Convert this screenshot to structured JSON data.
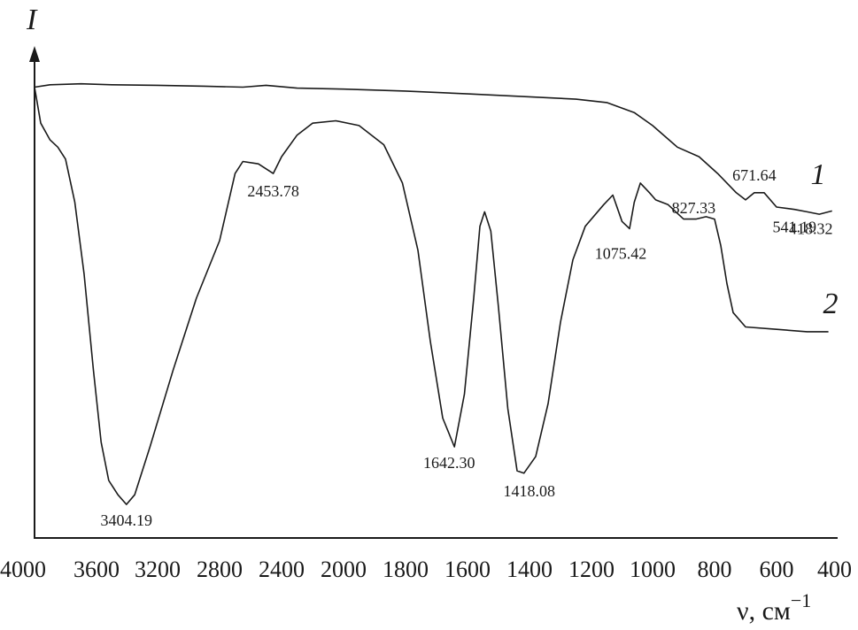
{
  "chart_data": {
    "type": "line",
    "title": "",
    "xlabel": "ν, см",
    "xlabel_sup": "−1",
    "ylabel": "I",
    "xlim": [
      4000,
      400
    ],
    "ylim": [
      0,
      1
    ],
    "grid": false,
    "x_ticks": [
      {
        "value": 4000,
        "label": "4000"
      },
      {
        "value": 3600,
        "label": "3600"
      },
      {
        "value": 3200,
        "label": "3200"
      },
      {
        "value": 2800,
        "label": "2800"
      },
      {
        "value": 2400,
        "label": "2400"
      },
      {
        "value": 2000,
        "label": "2000"
      },
      {
        "value": 1800,
        "label": "1800"
      },
      {
        "value": 1600,
        "label": "1600"
      },
      {
        "value": 1400,
        "label": "1400"
      },
      {
        "value": 1200,
        "label": "1200"
      },
      {
        "value": 1000,
        "label": "1000"
      },
      {
        "value": 800,
        "label": "800"
      },
      {
        "value": 600,
        "label": "600"
      },
      {
        "value": 400,
        "label": "400"
      }
    ],
    "series": [
      {
        "name": "1",
        "points": [
          [
            4000,
            0.94
          ],
          [
            3900,
            0.945
          ],
          [
            3700,
            0.947
          ],
          [
            3500,
            0.945
          ],
          [
            3200,
            0.944
          ],
          [
            2900,
            0.942
          ],
          [
            2650,
            0.94
          ],
          [
            2500,
            0.944
          ],
          [
            2300,
            0.938
          ],
          [
            2000,
            0.936
          ],
          [
            1800,
            0.932
          ],
          [
            1600,
            0.926
          ],
          [
            1400,
            0.92
          ],
          [
            1250,
            0.915
          ],
          [
            1150,
            0.908
          ],
          [
            1060,
            0.887
          ],
          [
            1000,
            0.86
          ],
          [
            920,
            0.815
          ],
          [
            850,
            0.795
          ],
          [
            790,
            0.76
          ],
          [
            730,
            0.72
          ],
          [
            700,
            0.705
          ],
          [
            671.64,
            0.72
          ],
          [
            640,
            0.72
          ],
          [
            600,
            0.69
          ],
          [
            541.19,
            0.685
          ],
          [
            500,
            0.68
          ],
          [
            460,
            0.675
          ],
          [
            418.32,
            0.682
          ]
        ],
        "peak_labels": [
          {
            "x": 671.64,
            "label": "671.64"
          },
          {
            "x": 541.19,
            "label": "541.19"
          },
          {
            "x": 418.32,
            "label": "418.32"
          }
        ]
      },
      {
        "name": "2",
        "points": [
          [
            4000,
            0.94
          ],
          [
            3960,
            0.865
          ],
          [
            3900,
            0.83
          ],
          [
            3850,
            0.815
          ],
          [
            3800,
            0.79
          ],
          [
            3740,
            0.7
          ],
          [
            3680,
            0.55
          ],
          [
            3620,
            0.35
          ],
          [
            3570,
            0.2
          ],
          [
            3520,
            0.12
          ],
          [
            3460,
            0.09
          ],
          [
            3404.19,
            0.07
          ],
          [
            3350,
            0.09
          ],
          [
            3250,
            0.19
          ],
          [
            3100,
            0.35
          ],
          [
            2950,
            0.5
          ],
          [
            2800,
            0.62
          ],
          [
            2700,
            0.76
          ],
          [
            2650,
            0.785
          ],
          [
            2550,
            0.78
          ],
          [
            2453.78,
            0.76
          ],
          [
            2400,
            0.795
          ],
          [
            2300,
            0.84
          ],
          [
            2200,
            0.865
          ],
          [
            2050,
            0.87
          ],
          [
            1950,
            0.86
          ],
          [
            1870,
            0.82
          ],
          [
            1810,
            0.74
          ],
          [
            1760,
            0.6
          ],
          [
            1720,
            0.41
          ],
          [
            1680,
            0.25
          ],
          [
            1642.3,
            0.19
          ],
          [
            1610,
            0.3
          ],
          [
            1580,
            0.5
          ],
          [
            1560,
            0.65
          ],
          [
            1545,
            0.68
          ],
          [
            1525,
            0.64
          ],
          [
            1500,
            0.48
          ],
          [
            1470,
            0.27
          ],
          [
            1440,
            0.14
          ],
          [
            1418.08,
            0.135
          ],
          [
            1380,
            0.17
          ],
          [
            1340,
            0.28
          ],
          [
            1300,
            0.45
          ],
          [
            1260,
            0.58
          ],
          [
            1220,
            0.65
          ],
          [
            1160,
            0.695
          ],
          [
            1130,
            0.715
          ],
          [
            1100,
            0.66
          ],
          [
            1075.42,
            0.645
          ],
          [
            1060,
            0.7
          ],
          [
            1040,
            0.74
          ],
          [
            1010,
            0.72
          ],
          [
            990,
            0.705
          ],
          [
            950,
            0.695
          ],
          [
            900,
            0.665
          ],
          [
            860,
            0.665
          ],
          [
            827.33,
            0.67
          ],
          [
            800,
            0.665
          ],
          [
            780,
            0.61
          ],
          [
            760,
            0.53
          ],
          [
            740,
            0.47
          ],
          [
            700,
            0.44
          ],
          [
            600,
            0.435
          ],
          [
            500,
            0.43
          ],
          [
            430,
            0.43
          ]
        ],
        "peak_labels": [
          {
            "x": 3404.19,
            "label": "3404.19"
          },
          {
            "x": 2453.78,
            "label": "2453.78"
          },
          {
            "x": 1642.3,
            "label": "1642.30"
          },
          {
            "x": 1418.08,
            "label": "1418.08"
          },
          {
            "x": 1075.42,
            "label": "1075.42"
          },
          {
            "x": 827.33,
            "label": "827.33"
          }
        ]
      }
    ]
  }
}
